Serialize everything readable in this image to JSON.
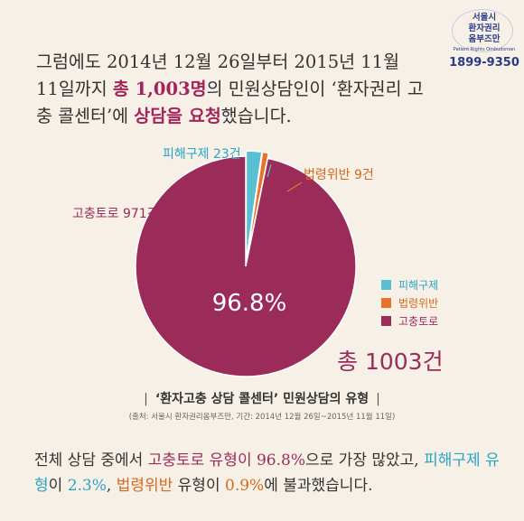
{
  "logo": {
    "line1": "서울시",
    "line2": "환자권리",
    "line3": "옴부즈만",
    "subtitle": "Patient Rights Ombudsman",
    "phone": "1899-9350"
  },
  "intro": {
    "p1": "그럼에도 2014년 12월 26일부터 2015년 11월 11일까지 ",
    "h1": "총 1,003명",
    "p2": "의 민원상담인이 ‘환자권리 고충 콜센터’에 ",
    "h2": "상담을 요청",
    "p3": "했습니다."
  },
  "chart_data": {
    "type": "pie",
    "title": "‘환자고충 상담 콜센터’ 민원상담의 유형",
    "source": "(출처: 서울시 환자권리옴부즈만, 기간: 2014년 12월 26일~2015년 11월 11일)",
    "slices": [
      {
        "name": "피해구제",
        "value": 23,
        "label": "피해구제 23건",
        "color": "#5bbfd4"
      },
      {
        "name": "법령위반",
        "value": 9,
        "label": "법령위반 9건",
        "color": "#e8732a"
      },
      {
        "name": "고충토로",
        "value": 971,
        "label": "고충토로 971건",
        "color": "#9b2c5a"
      }
    ],
    "center_label": "96.8%",
    "total_label": "총 1003건",
    "legend": [
      "피해구제",
      "법령위반",
      "고충토로"
    ],
    "legend_position": "right"
  },
  "outro": {
    "a": "전체 상담 중에서 ",
    "b": "고충토로 유형이 96.8%",
    "c": "으로 가장 많았고, ",
    "d": "피해구제 유형",
    "e": "이 ",
    "f": "2.3%",
    "g": ", ",
    "h": "법령위반",
    "i": " 유형이 ",
    "j": "0.9%",
    "k": "에 불과했습니다."
  }
}
